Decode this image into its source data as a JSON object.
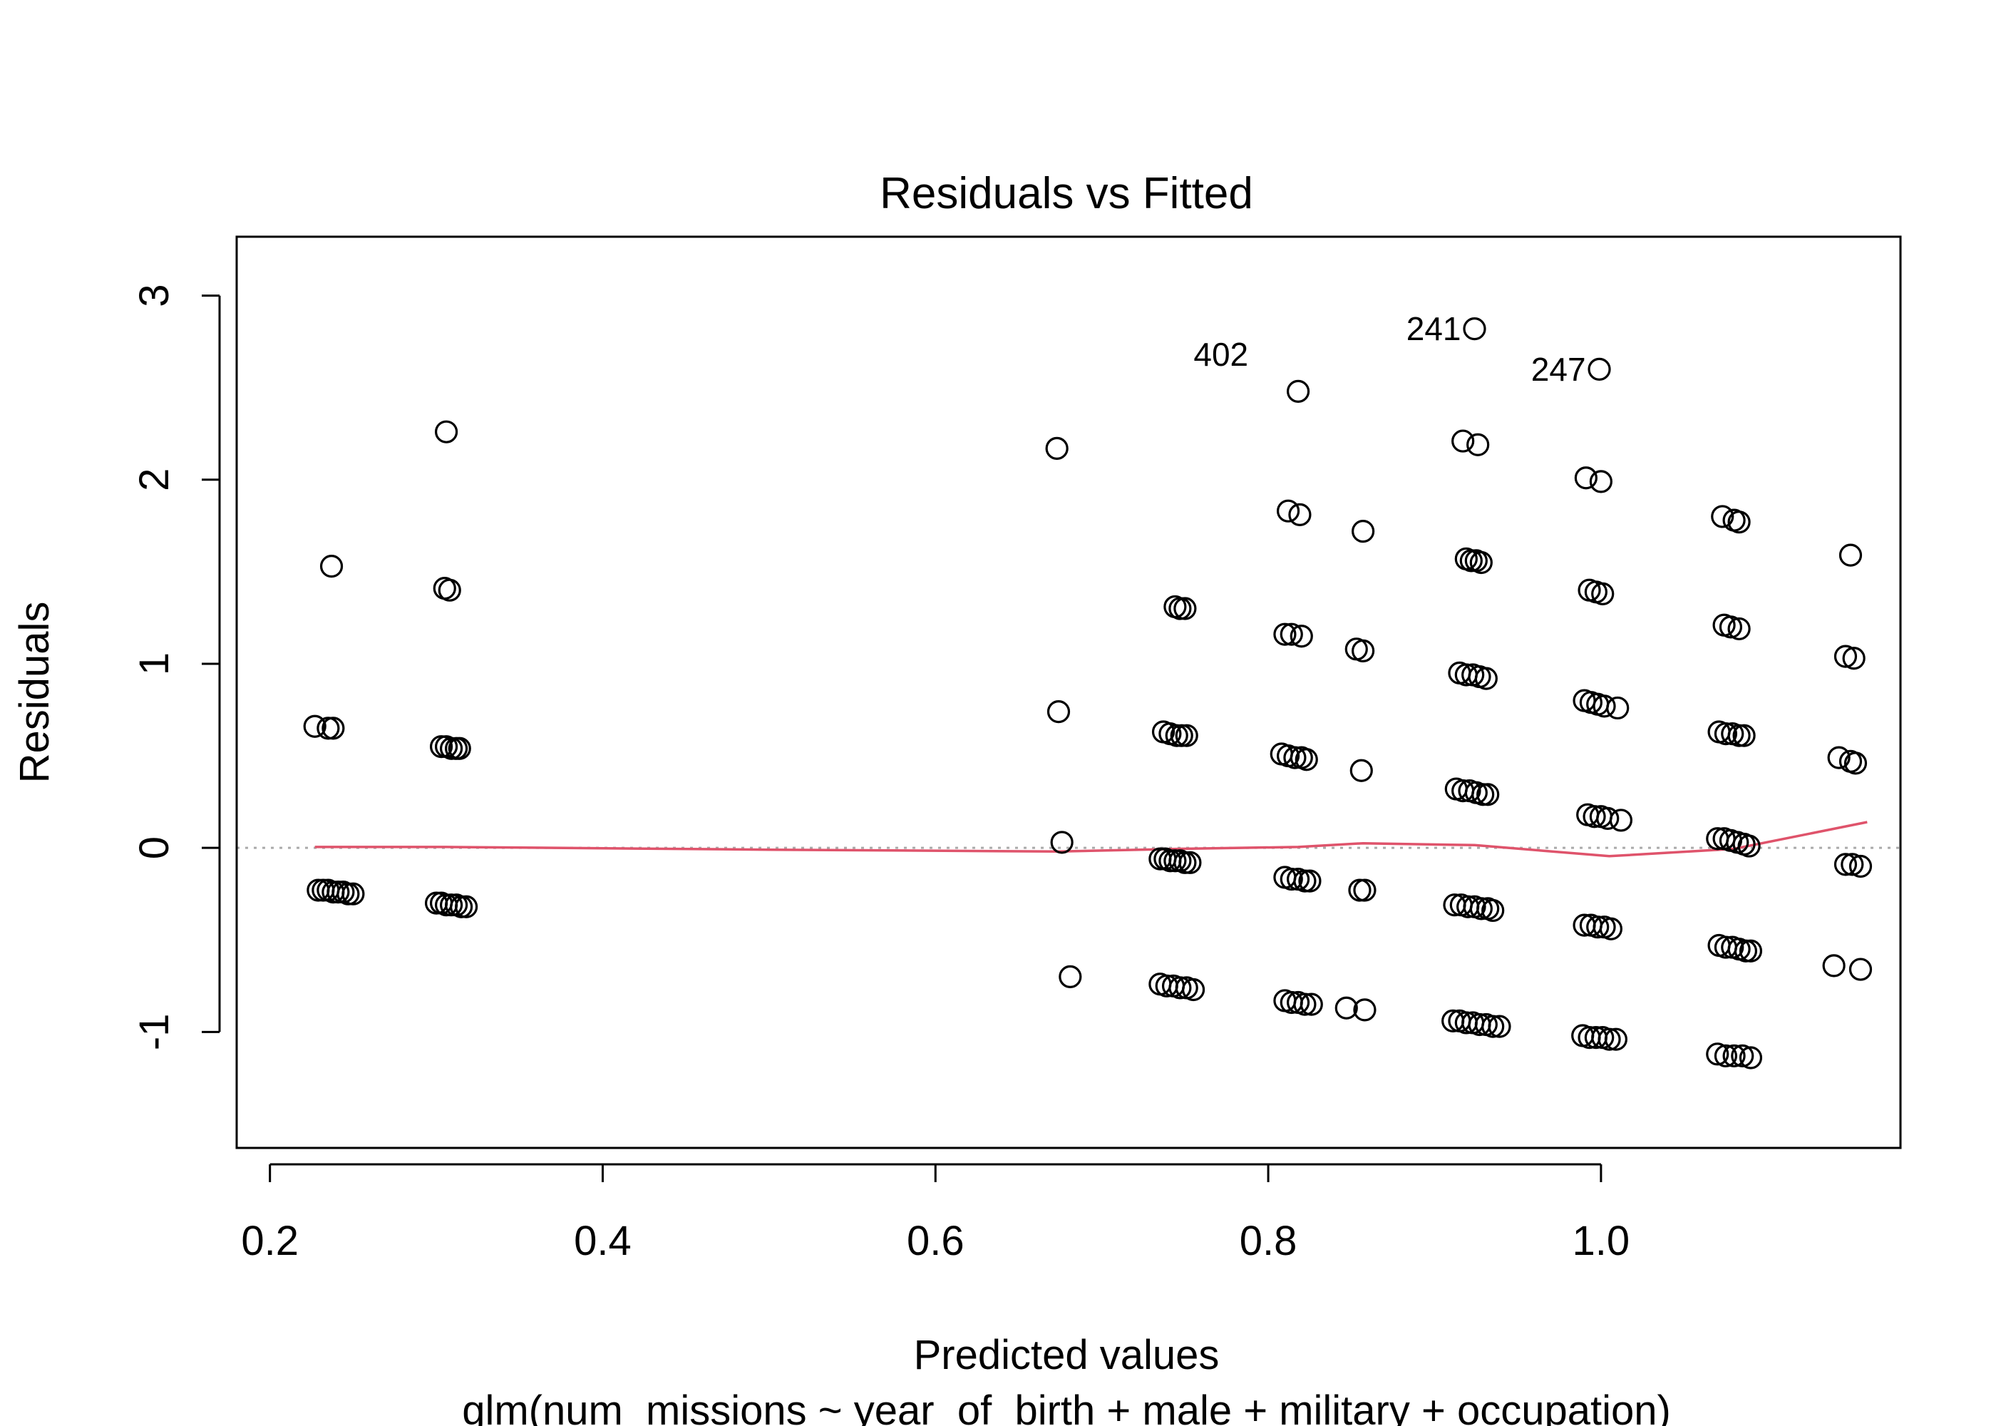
{
  "chart_data": {
    "type": "scatter",
    "title": "Residuals vs Fitted",
    "xlabel": "Predicted values",
    "sublabel": "glm(num_missions ~ year_of_birth + male + military + occupation)",
    "ylabel": "Residuals",
    "xlim": [
      0.18,
      1.18
    ],
    "ylim": [
      -1.63,
      3.32
    ],
    "x_ticks": [
      0.2,
      0.4,
      0.6,
      0.8,
      1.0
    ],
    "x_tick_labels": [
      "0.2",
      "0.4",
      "0.6",
      "0.8",
      "1.0"
    ],
    "y_ticks": [
      -1,
      0,
      1,
      2,
      3
    ],
    "y_tick_labels": [
      "-1",
      "0",
      "1",
      "2",
      "3"
    ],
    "grid": false,
    "reference_line": {
      "y": 0,
      "style": "dotted",
      "color": "#aaaaaa"
    },
    "smooth_color": "#df536b",
    "point_color": "#000000",
    "annotations": [
      {
        "label": "402",
        "x": 0.747,
        "y": 2.68,
        "side": "right"
      },
      {
        "label": "241",
        "x": 0.924,
        "y": 2.82,
        "side": "left"
      },
      {
        "label": "247",
        "x": 0.999,
        "y": 2.6,
        "side": "left"
      }
    ],
    "series": [
      {
        "points": [
          [
            0.227,
            0.66
          ],
          [
            0.235,
            0.65
          ],
          [
            0.238,
            0.65
          ],
          [
            0.237,
            1.53
          ],
          [
            0.229,
            -0.23
          ],
          [
            0.232,
            -0.23
          ],
          [
            0.235,
            -0.23
          ],
          [
            0.238,
            -0.24
          ],
          [
            0.241,
            -0.24
          ],
          [
            0.244,
            -0.24
          ],
          [
            0.247,
            -0.25
          ],
          [
            0.25,
            -0.25
          ],
          [
            0.306,
            2.26
          ],
          [
            0.305,
            1.41
          ],
          [
            0.308,
            1.4
          ],
          [
            0.303,
            0.55
          ],
          [
            0.306,
            0.55
          ],
          [
            0.309,
            0.54
          ],
          [
            0.312,
            0.54
          ],
          [
            0.314,
            0.54
          ],
          [
            0.3,
            -0.3
          ],
          [
            0.303,
            -0.3
          ],
          [
            0.306,
            -0.31
          ],
          [
            0.309,
            -0.31
          ],
          [
            0.312,
            -0.31
          ],
          [
            0.315,
            -0.32
          ],
          [
            0.318,
            -0.32
          ],
          [
            0.673,
            2.17
          ],
          [
            0.674,
            0.74
          ],
          [
            0.676,
            0.03
          ],
          [
            0.681,
            -0.7
          ],
          [
            0.744,
            1.31
          ],
          [
            0.747,
            1.3
          ],
          [
            0.75,
            1.3
          ],
          [
            0.737,
            0.63
          ],
          [
            0.741,
            0.62
          ],
          [
            0.745,
            0.61
          ],
          [
            0.748,
            0.61
          ],
          [
            0.751,
            0.61
          ],
          [
            0.735,
            -0.06
          ],
          [
            0.738,
            -0.06
          ],
          [
            0.741,
            -0.07
          ],
          [
            0.744,
            -0.07
          ],
          [
            0.747,
            -0.07
          ],
          [
            0.75,
            -0.08
          ],
          [
            0.753,
            -0.08
          ],
          [
            0.735,
            -0.74
          ],
          [
            0.739,
            -0.75
          ],
          [
            0.743,
            -0.75
          ],
          [
            0.747,
            -0.76
          ],
          [
            0.751,
            -0.76
          ],
          [
            0.755,
            -0.77
          ],
          [
            0.818,
            2.48
          ],
          [
            0.812,
            1.83
          ],
          [
            0.819,
            1.81
          ],
          [
            0.81,
            1.16
          ],
          [
            0.814,
            1.16
          ],
          [
            0.82,
            1.15
          ],
          [
            0.808,
            0.51
          ],
          [
            0.812,
            0.5
          ],
          [
            0.816,
            0.49
          ],
          [
            0.82,
            0.49
          ],
          [
            0.823,
            0.48
          ],
          [
            0.81,
            -0.16
          ],
          [
            0.814,
            -0.17
          ],
          [
            0.818,
            -0.17
          ],
          [
            0.822,
            -0.18
          ],
          [
            0.825,
            -0.18
          ],
          [
            0.81,
            -0.83
          ],
          [
            0.814,
            -0.84
          ],
          [
            0.818,
            -0.84
          ],
          [
            0.822,
            -0.85
          ],
          [
            0.826,
            -0.85
          ],
          [
            0.857,
            1.72
          ],
          [
            0.853,
            1.08
          ],
          [
            0.857,
            1.07
          ],
          [
            0.856,
            0.42
          ],
          [
            0.855,
            -0.23
          ],
          [
            0.858,
            -0.23
          ],
          [
            0.847,
            -0.87
          ],
          [
            0.858,
            -0.88
          ],
          [
            0.924,
            2.82
          ],
          [
            0.917,
            2.21
          ],
          [
            0.926,
            2.19
          ],
          [
            0.919,
            1.57
          ],
          [
            0.922,
            1.56
          ],
          [
            0.925,
            1.56
          ],
          [
            0.928,
            1.55
          ],
          [
            0.915,
            0.95
          ],
          [
            0.919,
            0.94
          ],
          [
            0.923,
            0.94
          ],
          [
            0.927,
            0.93
          ],
          [
            0.931,
            0.92
          ],
          [
            0.913,
            0.32
          ],
          [
            0.917,
            0.31
          ],
          [
            0.921,
            0.31
          ],
          [
            0.925,
            0.3
          ],
          [
            0.929,
            0.29
          ],
          [
            0.932,
            0.29
          ],
          [
            0.912,
            -0.31
          ],
          [
            0.916,
            -0.31
          ],
          [
            0.92,
            -0.32
          ],
          [
            0.924,
            -0.32
          ],
          [
            0.928,
            -0.33
          ],
          [
            0.932,
            -0.33
          ],
          [
            0.935,
            -0.34
          ],
          [
            0.911,
            -0.94
          ],
          [
            0.915,
            -0.94
          ],
          [
            0.919,
            -0.95
          ],
          [
            0.923,
            -0.95
          ],
          [
            0.927,
            -0.96
          ],
          [
            0.931,
            -0.96
          ],
          [
            0.935,
            -0.97
          ],
          [
            0.939,
            -0.97
          ],
          [
            0.999,
            2.6
          ],
          [
            0.991,
            2.01
          ],
          [
            1.0,
            1.99
          ],
          [
            0.993,
            1.4
          ],
          [
            0.997,
            1.39
          ],
          [
            1.001,
            1.38
          ],
          [
            0.99,
            0.8
          ],
          [
            0.994,
            0.79
          ],
          [
            0.998,
            0.78
          ],
          [
            1.002,
            0.77
          ],
          [
            1.01,
            0.76
          ],
          [
            0.992,
            0.18
          ],
          [
            0.996,
            0.17
          ],
          [
            1.0,
            0.17
          ],
          [
            1.004,
            0.16
          ],
          [
            1.012,
            0.15
          ],
          [
            0.99,
            -0.42
          ],
          [
            0.994,
            -0.42
          ],
          [
            0.998,
            -0.43
          ],
          [
            1.002,
            -0.43
          ],
          [
            1.006,
            -0.44
          ],
          [
            0.989,
            -1.02
          ],
          [
            0.993,
            -1.03
          ],
          [
            0.997,
            -1.03
          ],
          [
            1.001,
            -1.03
          ],
          [
            1.005,
            -1.04
          ],
          [
            1.009,
            -1.04
          ],
          [
            1.073,
            1.8
          ],
          [
            1.08,
            1.78
          ],
          [
            1.083,
            1.77
          ],
          [
            1.074,
            1.21
          ],
          [
            1.078,
            1.2
          ],
          [
            1.083,
            1.19
          ],
          [
            1.071,
            0.63
          ],
          [
            1.075,
            0.62
          ],
          [
            1.079,
            0.62
          ],
          [
            1.083,
            0.61
          ],
          [
            1.086,
            0.61
          ],
          [
            1.07,
            0.05
          ],
          [
            1.074,
            0.05
          ],
          [
            1.078,
            0.04
          ],
          [
            1.082,
            0.03
          ],
          [
            1.086,
            0.02
          ],
          [
            1.089,
            0.01
          ],
          [
            1.071,
            -0.53
          ],
          [
            1.075,
            -0.54
          ],
          [
            1.079,
            -0.54
          ],
          [
            1.083,
            -0.55
          ],
          [
            1.087,
            -0.56
          ],
          [
            1.09,
            -0.56
          ],
          [
            1.07,
            -1.12
          ],
          [
            1.075,
            -1.13
          ],
          [
            1.08,
            -1.13
          ],
          [
            1.085,
            -1.13
          ],
          [
            1.09,
            -1.14
          ],
          [
            1.15,
            1.59
          ],
          [
            1.147,
            1.04
          ],
          [
            1.152,
            1.03
          ],
          [
            1.143,
            0.49
          ],
          [
            1.15,
            0.47
          ],
          [
            1.153,
            0.46
          ],
          [
            1.147,
            -0.09
          ],
          [
            1.151,
            -0.09
          ],
          [
            1.156,
            -0.1
          ],
          [
            1.14,
            -0.64
          ],
          [
            1.156,
            -0.66
          ]
        ]
      }
    ],
    "smooth": [
      [
        0.227,
        0.005
      ],
      [
        0.306,
        0.005
      ],
      [
        0.5,
        -0.01
      ],
      [
        0.674,
        -0.02
      ],
      [
        0.747,
        -0.005
      ],
      [
        0.818,
        0.005
      ],
      [
        0.857,
        0.025
      ],
      [
        0.924,
        0.015
      ],
      [
        1.005,
        -0.045
      ],
      [
        1.08,
        -0.005
      ],
      [
        1.16,
        0.14
      ]
    ]
  }
}
